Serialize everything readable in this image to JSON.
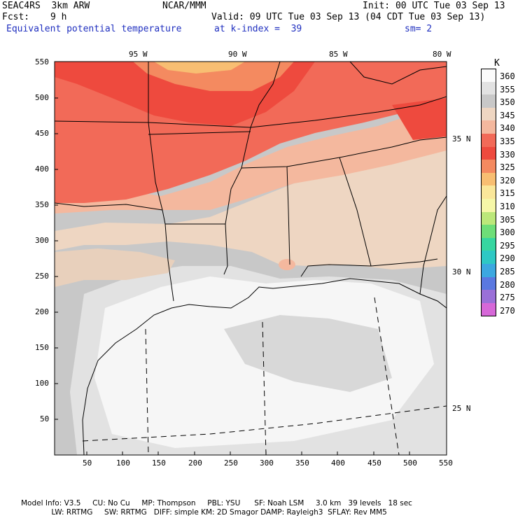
{
  "header": {
    "model": "SEAC4RS  3km ARW",
    "center": "NCAR/MMM",
    "init": "Init: 00 UTC Tue 03 Sep 13",
    "fcst_label": "Fcst:",
    "fcst_value": "9 h",
    "valid": "Valid: 09 UTC Tue 03 Sep 13 (04 CDT Tue 03 Sep 13)",
    "field": "Equivalent potential temperature",
    "level": "at k-index =  39",
    "smoothing": "sm= 2"
  },
  "map": {
    "x_ticks": [
      "50",
      "100",
      "150",
      "200",
      "250",
      "300",
      "350",
      "400",
      "450",
      "500",
      "550"
    ],
    "y_ticks": [
      "550",
      "500",
      "450",
      "400",
      "350",
      "300",
      "250",
      "200",
      "150",
      "100",
      "50"
    ],
    "lon_labels": [
      "95 W",
      "90 W",
      "85 W",
      "80 W"
    ],
    "lat_labels": [
      "35 N",
      "30 N",
      "25 N"
    ]
  },
  "colorbar": {
    "unit": "K",
    "levels": [
      "360",
      "355",
      "350",
      "345",
      "340",
      "335",
      "330",
      "325",
      "320",
      "315",
      "310",
      "305",
      "300",
      "295",
      "290",
      "285",
      "280",
      "275",
      "270"
    ],
    "colors": [
      "#fbfbfb",
      "#e2e2e2",
      "#c8c8c8",
      "#eed6c2",
      "#f4b89e",
      "#f26a58",
      "#ee4a3e",
      "#f48a60",
      "#f8be72",
      "#fae79a",
      "#f6f7a8",
      "#bce87a",
      "#6ede78",
      "#36d6a0",
      "#2ec8c4",
      "#3ca8e0",
      "#5a78e0",
      "#9a70d8",
      "#d668d8"
    ]
  },
  "footer": {
    "line1": "Model Info: V3.5     CU: No Cu     MP: Thompson     PBL: YSU      SF: Noah LSM     3.0 km   39 levels   18 sec",
    "line2": "             LW: RRTMG     SW: RRTMG   DIFF: simple KM: 2D Smagor DAMP: Rayleigh3  SFLAY: Rev MM5"
  }
}
